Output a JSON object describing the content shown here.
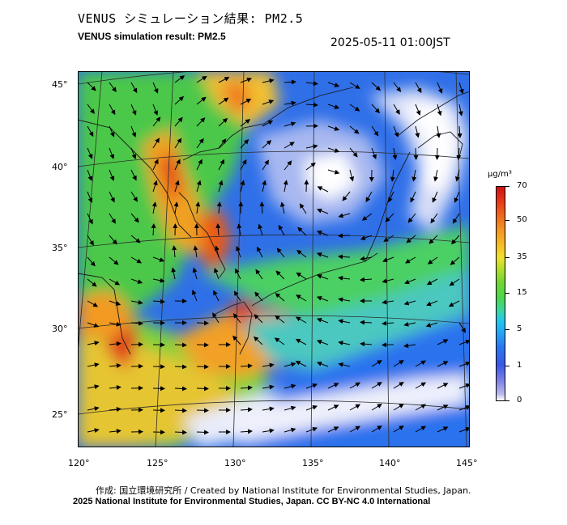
{
  "title_jp": "VENUS シミュレーション結果: PM2.5",
  "title_en": "VENUS simulation result: PM2.5",
  "datetime": "2025-05-11 01:00JST",
  "lat_labels": [
    "45°",
    "40°",
    "35°",
    "30°",
    "25°"
  ],
  "lon_labels": [
    "120°",
    "125°",
    "130°",
    "135°",
    "140°",
    "145°"
  ],
  "colorbar": {
    "unit": "μg/m³",
    "ticks": [
      "70",
      "50",
      "35",
      "15",
      "5",
      "1",
      "0"
    ],
    "colors": [
      "#ffffff",
      "#7f83e6",
      "#2a77f0",
      "#27c9e4",
      "#4cd64c",
      "#f0e030",
      "#f39a24",
      "#cc1212"
    ]
  },
  "credit_line1": "作成: 国立環境研究所 / Created by National Institute for Environmental Studies, Japan.",
  "credit_line2": "2025 National Institute for Environmental Studies, Japan. CC BY-NC 4.0 International"
}
